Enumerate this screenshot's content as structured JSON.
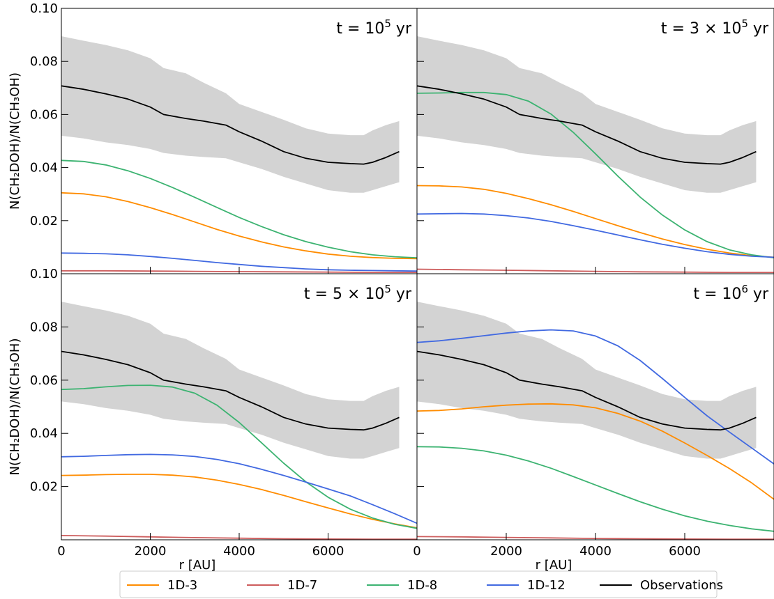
{
  "chart_data": {
    "type": "line",
    "layout": "2x2 grid, shared x and y axes",
    "xlabel": "r [AU]",
    "ylabel": "N(CH₂DOH)/N(CH₃OH)",
    "xlim": [
      0,
      8000
    ],
    "ylim": [
      0,
      0.1
    ],
    "xticks": [
      0,
      2000,
      4000,
      6000
    ],
    "xtick_labels": [
      "0",
      "2000",
      "4000",
      "6000"
    ],
    "yticks": [
      0.02,
      0.04,
      0.06,
      0.08,
      0.1
    ],
    "ytick_labels_top_row": [
      "0.02",
      "0.04",
      "0.06",
      "0.08",
      "0.10"
    ],
    "ytick_labels_bottom_row": [
      "0.02",
      "0.04",
      "0.06",
      "0.08",
      "0.10"
    ],
    "grid": false,
    "legend": {
      "placement": "bottom-center",
      "entries": [
        {
          "name": "1D-3",
          "color": "#ff8c00"
        },
        {
          "name": "1D-7",
          "color": "#cd5c5c"
        },
        {
          "name": "1D-8",
          "color": "#3cb371"
        },
        {
          "name": "1D-12",
          "color": "#4169e1"
        },
        {
          "name": "Observations",
          "color": "#000000"
        }
      ]
    },
    "observations": {
      "name": "Observations",
      "color": "#000000",
      "band_color": "#d3d3d3",
      "x": [
        0,
        500,
        1000,
        1500,
        2000,
        2300,
        2800,
        3200,
        3700,
        4000,
        4500,
        5000,
        5500,
        6000,
        6500,
        6800,
        7000,
        7300,
        7600
      ],
      "y": [
        0.0708,
        0.0695,
        0.0678,
        0.0658,
        0.0628,
        0.06,
        0.0585,
        0.0575,
        0.056,
        0.0535,
        0.05,
        0.046,
        0.0435,
        0.042,
        0.0415,
        0.0413,
        0.042,
        0.0438,
        0.046
      ],
      "lower": [
        0.052,
        0.051,
        0.0495,
        0.0485,
        0.047,
        0.0455,
        0.0445,
        0.044,
        0.0435,
        0.042,
        0.0395,
        0.0365,
        0.034,
        0.0315,
        0.0305,
        0.0305,
        0.0315,
        0.033,
        0.0345
      ],
      "upper": [
        0.0895,
        0.0878,
        0.0862,
        0.0842,
        0.0812,
        0.0775,
        0.0755,
        0.072,
        0.068,
        0.064,
        0.061,
        0.058,
        0.0548,
        0.0528,
        0.0522,
        0.0522,
        0.054,
        0.056,
        0.0575
      ]
    },
    "panels": [
      {
        "title": "t = 10",
        "title_exp": "5",
        "title_unit": " yr",
        "series": [
          {
            "name": "1D-3",
            "color": "#ff8c00",
            "x": [
              0,
              500,
              1000,
              1500,
              2000,
              2500,
              3000,
              3500,
              4000,
              4500,
              5000,
              5500,
              6000,
              6500,
              7000,
              7500,
              8000
            ],
            "y": [
              0.0305,
              0.0301,
              0.029,
              0.0272,
              0.0249,
              0.0223,
              0.0195,
              0.0167,
              0.0142,
              0.012,
              0.0101,
              0.0086,
              0.0074,
              0.0066,
              0.0061,
              0.0058,
              0.0057
            ]
          },
          {
            "name": "1D-7",
            "color": "#cd5c5c",
            "x": [
              0,
              1000,
              2000,
              3000,
              4000,
              5000,
              6000,
              7000,
              8000
            ],
            "y": [
              0.0011,
              0.0011,
              0.001,
              0.0009,
              0.0008,
              0.0007,
              0.0006,
              0.0005,
              0.0005
            ]
          },
          {
            "name": "1D-8",
            "color": "#3cb371",
            "x": [
              0,
              500,
              1000,
              1500,
              2000,
              2500,
              3000,
              3500,
              4000,
              4500,
              5000,
              5500,
              6000,
              6500,
              7000,
              7500,
              8000
            ],
            "y": [
              0.0427,
              0.0423,
              0.041,
              0.0388,
              0.0359,
              0.0325,
              0.0288,
              0.025,
              0.0212,
              0.0178,
              0.0147,
              0.0121,
              0.01,
              0.0083,
              0.0071,
              0.0064,
              0.006
            ]
          },
          {
            "name": "1D-12",
            "color": "#4169e1",
            "x": [
              0,
              500,
              1000,
              1500,
              2000,
              2500,
              3000,
              3500,
              4000,
              4500,
              5000,
              5500,
              6000,
              6500,
              7000,
              7500,
              8000
            ],
            "y": [
              0.0078,
              0.0077,
              0.0075,
              0.0071,
              0.0065,
              0.0058,
              0.005,
              0.0042,
              0.0035,
              0.0028,
              0.0023,
              0.0018,
              0.0015,
              0.0013,
              0.0012,
              0.0011,
              0.001
            ]
          }
        ]
      },
      {
        "title": "t = 3 × 10",
        "title_exp": "5",
        "title_unit": " yr",
        "series": [
          {
            "name": "1D-3",
            "color": "#ff8c00",
            "x": [
              0,
              500,
              1000,
              1500,
              2000,
              2500,
              3000,
              3500,
              4000,
              4500,
              5000,
              5500,
              6000,
              6500,
              7000,
              7500,
              8000
            ],
            "y": [
              0.0332,
              0.0331,
              0.0327,
              0.0318,
              0.0303,
              0.0283,
              0.026,
              0.0235,
              0.0208,
              0.0181,
              0.0155,
              0.0131,
              0.011,
              0.0092,
              0.0078,
              0.0068,
              0.0062
            ]
          },
          {
            "name": "1D-7",
            "color": "#cd5c5c",
            "x": [
              0,
              1000,
              2000,
              3000,
              4000,
              5000,
              6000,
              7000,
              8000
            ],
            "y": [
              0.0017,
              0.0015,
              0.0013,
              0.0011,
              0.0009,
              0.0007,
              0.0006,
              0.0005,
              0.0005
            ]
          },
          {
            "name": "1D-8",
            "color": "#3cb371",
            "x": [
              0,
              500,
              1000,
              1500,
              2000,
              2500,
              3000,
              3500,
              4000,
              4500,
              5000,
              5500,
              6000,
              6500,
              7000,
              7500,
              8000
            ],
            "y": [
              0.068,
              0.0681,
              0.0683,
              0.0683,
              0.0675,
              0.065,
              0.0602,
              0.0533,
              0.0452,
              0.0368,
              0.0289,
              0.0221,
              0.0165,
              0.0121,
              0.009,
              0.0071,
              0.006
            ]
          },
          {
            "name": "1D-12",
            "color": "#4169e1",
            "x": [
              0,
              500,
              1000,
              1500,
              2000,
              2500,
              3000,
              3500,
              4000,
              4500,
              5000,
              5500,
              6000,
              6500,
              7000,
              7500,
              8000
            ],
            "y": [
              0.0225,
              0.0226,
              0.0227,
              0.0225,
              0.0219,
              0.021,
              0.0197,
              0.0181,
              0.0164,
              0.0146,
              0.0128,
              0.0111,
              0.0096,
              0.0083,
              0.0073,
              0.0066,
              0.0062
            ]
          }
        ]
      },
      {
        "title": "t = 5 × 10",
        "title_exp": "5",
        "title_unit": " yr",
        "series": [
          {
            "name": "1D-3",
            "color": "#ff8c00",
            "x": [
              0,
              500,
              1000,
              1500,
              2000,
              2500,
              3000,
              3500,
              4000,
              4500,
              5000,
              5500,
              6000,
              6500,
              7000,
              7500,
              8000
            ],
            "y": [
              0.0242,
              0.0243,
              0.0245,
              0.0246,
              0.0246,
              0.0243,
              0.0236,
              0.0224,
              0.0208,
              0.0189,
              0.0167,
              0.0143,
              0.012,
              0.0097,
              0.0077,
              0.006,
              0.0045
            ]
          },
          {
            "name": "1D-7",
            "color": "#cd5c5c",
            "x": [
              0,
              1000,
              2000,
              3000,
              4000,
              5000,
              6000,
              7000,
              8000
            ],
            "y": [
              0.0016,
              0.0014,
              0.0011,
              0.0008,
              0.0006,
              0.0004,
              0.0003,
              0.0002,
              0.0002
            ]
          },
          {
            "name": "1D-8",
            "color": "#3cb371",
            "x": [
              0,
              500,
              1000,
              1500,
              2000,
              2500,
              3000,
              3500,
              4000,
              4500,
              5000,
              5500,
              6000,
              6500,
              7000,
              7500,
              8000
            ],
            "y": [
              0.0565,
              0.0568,
              0.0575,
              0.058,
              0.0581,
              0.0574,
              0.0551,
              0.0506,
              0.0441,
              0.0365,
              0.0288,
              0.0218,
              0.016,
              0.0115,
              0.0082,
              0.0058,
              0.0043
            ]
          },
          {
            "name": "1D-12",
            "color": "#4169e1",
            "x": [
              0,
              500,
              1000,
              1500,
              2000,
              2500,
              3000,
              3500,
              4000,
              4500,
              5000,
              5500,
              6000,
              6500,
              7000,
              7500,
              8000
            ],
            "y": [
              0.0312,
              0.0314,
              0.0317,
              0.032,
              0.0321,
              0.0319,
              0.0313,
              0.0302,
              0.0286,
              0.0265,
              0.0242,
              0.0217,
              0.0191,
              0.0165,
              0.0132,
              0.0098,
              0.0062
            ]
          }
        ]
      },
      {
        "title": "t = 10",
        "title_exp": "6",
        "title_unit": " yr",
        "series": [
          {
            "name": "1D-3",
            "color": "#ff8c00",
            "x": [
              0,
              500,
              1000,
              1500,
              2000,
              2500,
              3000,
              3500,
              4000,
              4500,
              5000,
              5500,
              6000,
              6500,
              7000,
              7500,
              8000
            ],
            "y": [
              0.0484,
              0.0486,
              0.0492,
              0.05,
              0.0506,
              0.051,
              0.0511,
              0.0507,
              0.0496,
              0.0475,
              0.0446,
              0.0408,
              0.0364,
              0.0317,
              0.0268,
              0.0214,
              0.0152
            ]
          },
          {
            "name": "1D-7",
            "color": "#cd5c5c",
            "x": [
              0,
              1000,
              2000,
              3000,
              4000,
              5000,
              6000,
              7000,
              8000
            ],
            "y": [
              0.0012,
              0.0011,
              0.0009,
              0.0007,
              0.0005,
              0.0004,
              0.0003,
              0.0002,
              0.0002
            ]
          },
          {
            "name": "1D-8",
            "color": "#3cb371",
            "x": [
              0,
              500,
              1000,
              1500,
              2000,
              2500,
              3000,
              3500,
              4000,
              4500,
              5000,
              5500,
              6000,
              6500,
              7000,
              7500,
              8000
            ],
            "y": [
              0.035,
              0.0349,
              0.0344,
              0.0334,
              0.0318,
              0.0296,
              0.0269,
              0.0238,
              0.0206,
              0.0174,
              0.0143,
              0.0115,
              0.009,
              0.007,
              0.0054,
              0.0041,
              0.0032
            ]
          },
          {
            "name": "1D-12",
            "color": "#4169e1",
            "x": [
              0,
              500,
              1000,
              1500,
              2000,
              2500,
              3000,
              3500,
              4000,
              4500,
              5000,
              5500,
              6000,
              6500,
              7000,
              7500,
              8000
            ],
            "y": [
              0.0742,
              0.0748,
              0.0757,
              0.0767,
              0.0777,
              0.0785,
              0.0789,
              0.0785,
              0.0766,
              0.0729,
              0.0674,
              0.0606,
              0.0535,
              0.0466,
              0.0405,
              0.0345,
              0.0285
            ]
          }
        ]
      }
    ]
  }
}
